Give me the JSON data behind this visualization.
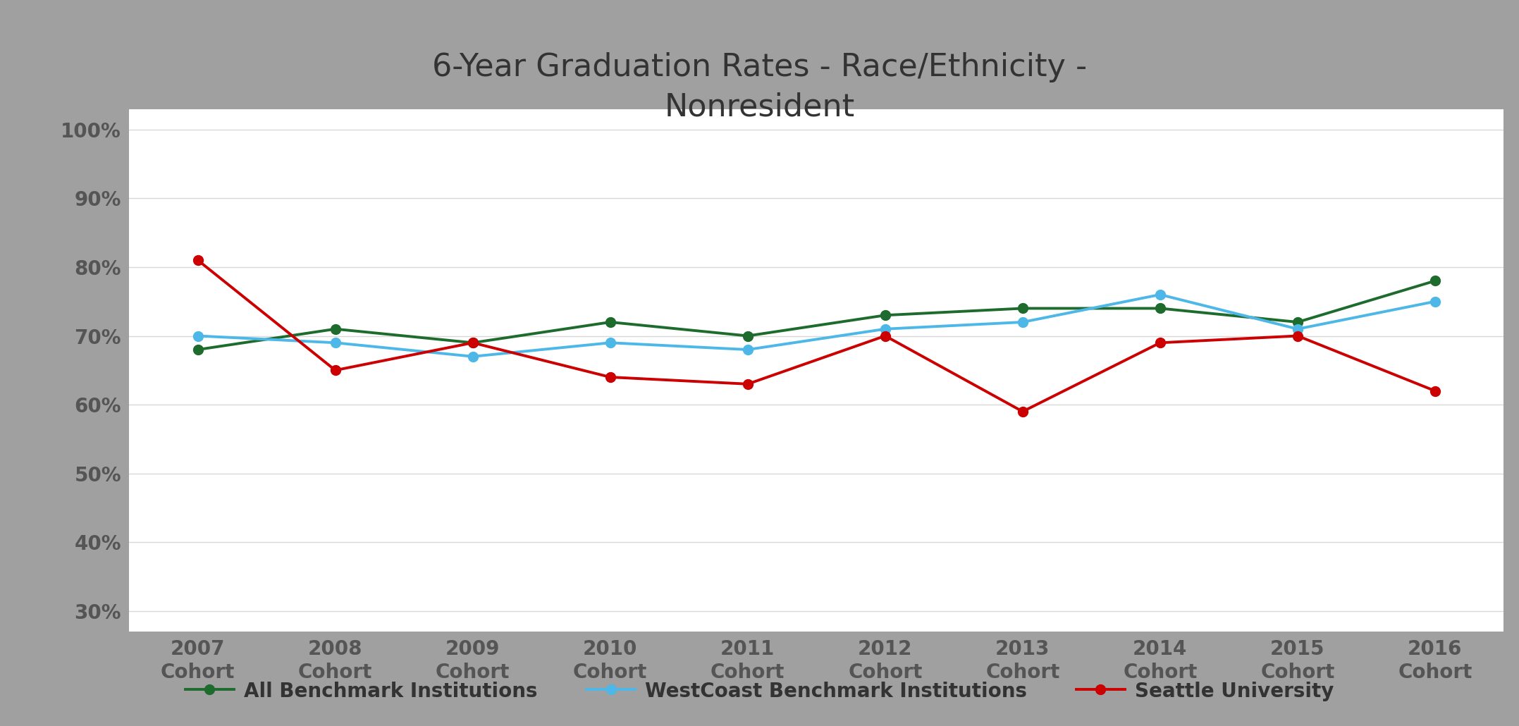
{
  "title": "6-Year Graduation Rates - Race/Ethnicity -\nNonresident",
  "x_labels": [
    "2007\nCohort",
    "2008\nCohort",
    "2009\nCohort",
    "2010\nCohort",
    "2011\nCohort",
    "2012\nCohort",
    "2013\nCohort",
    "2014\nCohort",
    "2015\nCohort",
    "2016\nCohort"
  ],
  "x_values": [
    0,
    1,
    2,
    3,
    4,
    5,
    6,
    7,
    8,
    9
  ],
  "all_benchmark": [
    0.68,
    0.71,
    0.69,
    0.72,
    0.7,
    0.73,
    0.74,
    0.74,
    0.72,
    0.78
  ],
  "westcoast_benchmark": [
    0.7,
    0.69,
    0.67,
    0.69,
    0.68,
    0.71,
    0.72,
    0.76,
    0.71,
    0.75
  ],
  "seattle_university": [
    0.81,
    0.65,
    0.69,
    0.64,
    0.63,
    0.7,
    0.59,
    0.69,
    0.7,
    0.62
  ],
  "all_benchmark_color": "#1e6b2e",
  "westcoast_benchmark_color": "#4db8e8",
  "seattle_university_color": "#cc0000",
  "y_ticks": [
    0.3,
    0.4,
    0.5,
    0.6,
    0.7,
    0.8,
    0.9,
    1.0
  ],
  "y_tick_labels": [
    "30%",
    "40%",
    "50%",
    "60%",
    "70%",
    "80%",
    "90%",
    "100%"
  ],
  "ylim": [
    0.27,
    1.03
  ],
  "legend_labels": [
    "All Benchmark Institutions",
    "WestCoast Benchmark Institutions",
    "Seattle University"
  ],
  "figure_bg_color": "#a0a0a0",
  "plot_bg_color": "#ffffff",
  "title_fontsize": 32,
  "tick_fontsize": 20,
  "legend_fontsize": 20,
  "line_width": 2.8,
  "marker_size": 10,
  "grid_color": "#d8d8d8",
  "tick_color": "#555555"
}
